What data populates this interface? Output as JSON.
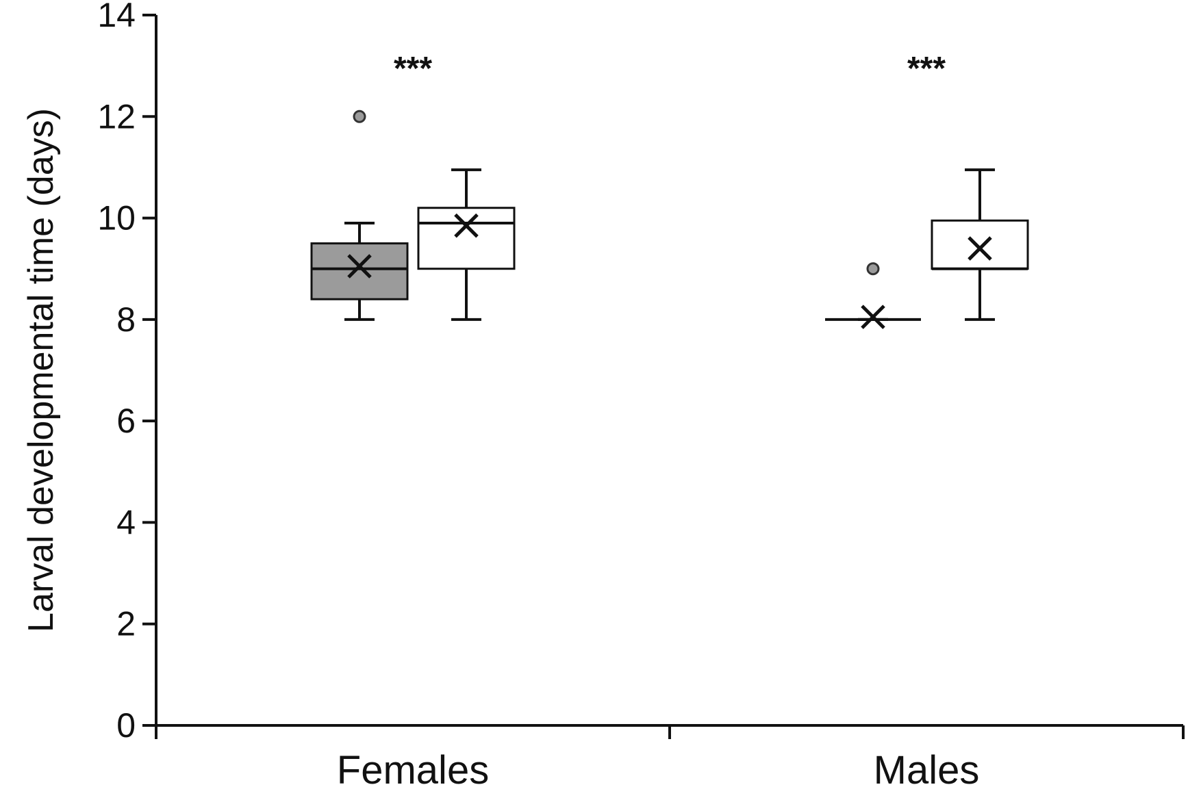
{
  "chart_data": {
    "type": "box",
    "title": "",
    "xlabel": "",
    "ylabel": "Larval developmental time (days)",
    "ylim": [
      0,
      14
    ],
    "yticks": [
      0,
      2,
      4,
      6,
      8,
      10,
      12,
      14
    ],
    "grid": false,
    "legend": "none",
    "categories": [
      "Females",
      "Males"
    ],
    "series_colors": [
      "#9b9b9b",
      "#ffffff"
    ],
    "boxes": [
      {
        "category": "Females",
        "series_index": 0,
        "whisker_low": 8,
        "q1": 8.4,
        "median": 9,
        "q3": 9.5,
        "whisker_high": 9.9,
        "mean": 9.05,
        "outliers": [
          12
        ]
      },
      {
        "category": "Females",
        "series_index": 1,
        "whisker_low": 8,
        "q1": 9,
        "median": 9.9,
        "q3": 10.2,
        "whisker_high": 10.95,
        "mean": 9.85,
        "outliers": []
      },
      {
        "category": "Males",
        "series_index": 0,
        "whisker_low": 8,
        "q1": 8,
        "median": 8,
        "q3": 8,
        "whisker_high": 8,
        "mean": 8.05,
        "outliers": [
          9
        ]
      },
      {
        "category": "Males",
        "series_index": 1,
        "whisker_low": 8,
        "q1": 9,
        "median": 9,
        "q3": 9.95,
        "whisker_high": 10.95,
        "mean": 9.4,
        "outliers": []
      }
    ],
    "annotations": [
      {
        "category": "Females",
        "text": "***",
        "y": 13
      },
      {
        "category": "Males",
        "text": "***",
        "y": 13
      }
    ]
  }
}
